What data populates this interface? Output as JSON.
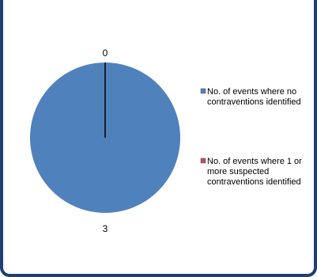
{
  "chart_data": {
    "type": "pie",
    "categories": [
      "No. of events where no contraventions identified",
      "No. of events where 1 or more suspected contraventions identified"
    ],
    "values": [
      3,
      0
    ],
    "colors": [
      "#4f81bd",
      "#c0504d"
    ],
    "legend": {
      "placement": "right",
      "entries": [
        [
          "No. of events where no",
          "contraventions identified"
        ],
        [
          "No. of events where 1 or",
          "more suspected",
          "contraventions identified"
        ]
      ]
    },
    "data_labels": [
      "3",
      "0"
    ]
  }
}
